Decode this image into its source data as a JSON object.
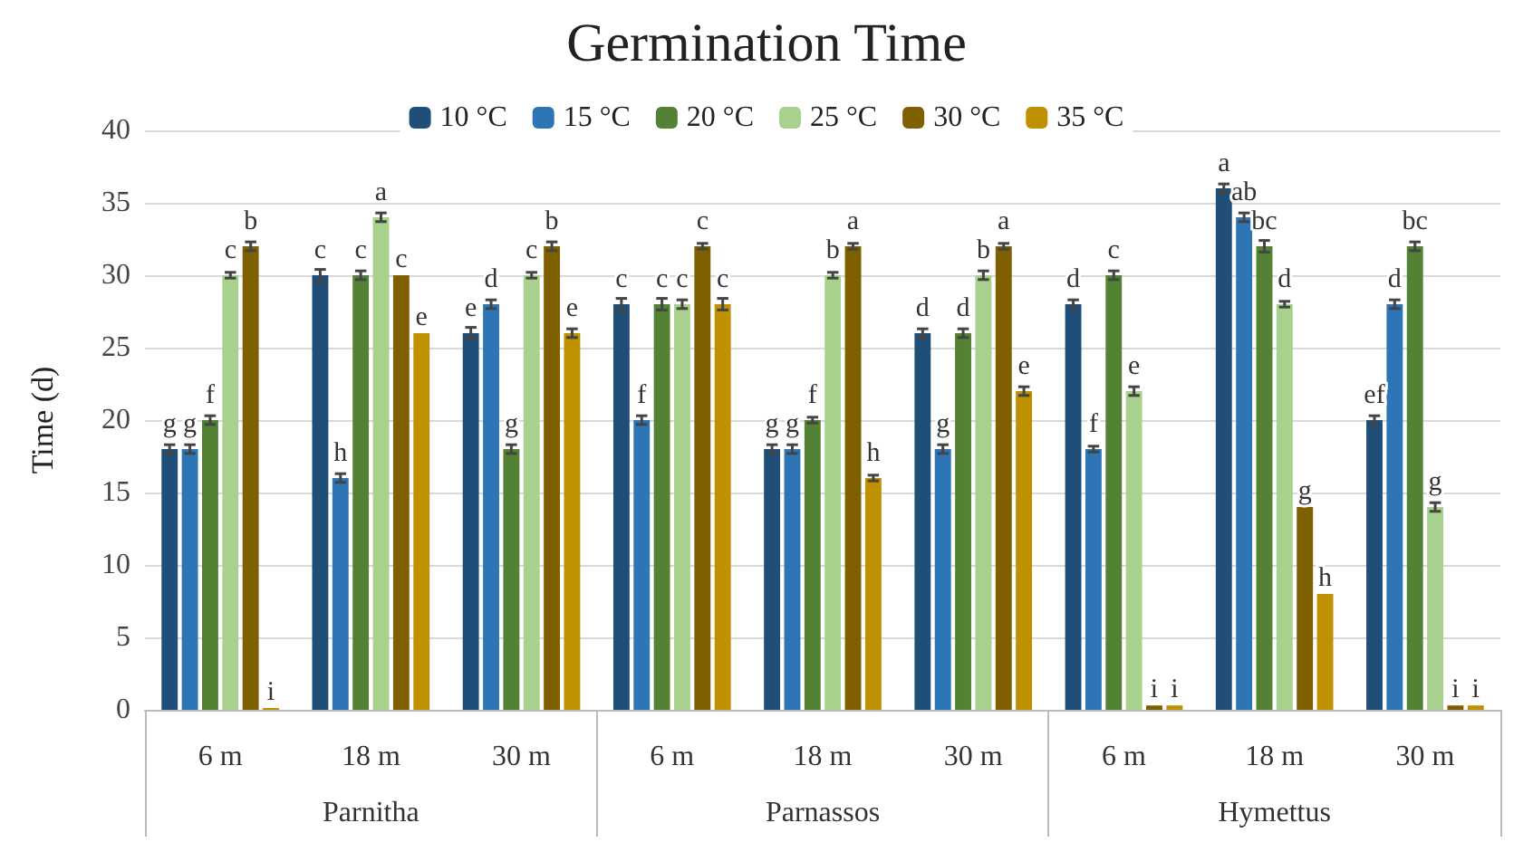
{
  "chart_data": {
    "type": "bar",
    "title": "Germination Time",
    "ylabel": "Time (d)",
    "categories": [
      "6 m",
      "18 m",
      "30 m",
      "6 m",
      "18 m",
      "30 m",
      "6 m",
      "18 m",
      "30 m"
    ],
    "annotations": [
      "Parnitha",
      "Parnassos",
      "Hymettus"
    ],
    "series": [
      {
        "name": "10 °C",
        "color": "#1f4e79",
        "values": [
          18,
          30,
          26,
          28,
          18,
          26,
          28,
          36,
          20
        ],
        "errors": [
          0.3,
          0.4,
          0.4,
          0.4,
          0.3,
          0.3,
          0.3,
          0.3,
          0.3
        ],
        "value_labels": [
          "g",
          "c",
          "e",
          "c",
          "g",
          "d",
          "d",
          "a",
          "ef"
        ]
      },
      {
        "name": "15 °C",
        "color": "#2e75b6",
        "values": [
          18,
          16,
          28,
          20,
          18,
          18,
          18,
          34,
          28
        ],
        "errors": [
          0.3,
          0.3,
          0.3,
          0.3,
          0.3,
          0.3,
          0.2,
          0.3,
          0.3
        ],
        "value_labels": [
          "g",
          "h",
          "d",
          "f",
          "g",
          "g",
          "f",
          "ab",
          "d"
        ]
      },
      {
        "name": "20 °C",
        "color": "#548235",
        "values": [
          20,
          30,
          18,
          28,
          20,
          26,
          30,
          32,
          32
        ],
        "errors": [
          0.3,
          0.3,
          0.3,
          0.4,
          0.2,
          0.3,
          0.3,
          0.4,
          0.3
        ],
        "value_labels": [
          "f",
          "c",
          "g",
          "c",
          "f",
          "d",
          "c",
          "bc",
          "bc"
        ]
      },
      {
        "name": "25 °C",
        "color": "#a9d18e",
        "values": [
          30,
          34,
          30,
          28,
          30,
          30,
          22,
          28,
          14
        ],
        "errors": [
          0.2,
          0.3,
          0.2,
          0.3,
          0.2,
          0.3,
          0.3,
          0.2,
          0.3
        ],
        "value_labels": [
          "c",
          "a",
          "c",
          "c",
          "b",
          "b",
          "e",
          "d",
          "g"
        ]
      },
      {
        "name": "30 °C",
        "color": "#7f6000",
        "values": [
          32,
          30,
          32,
          32,
          32,
          32,
          0.3,
          14,
          0.3
        ],
        "errors": [
          0.3,
          null,
          0.3,
          0.2,
          0.2,
          0.2,
          null,
          null,
          null
        ],
        "value_labels": [
          "b",
          "c",
          "b",
          "c",
          "a",
          "a",
          "i",
          "g",
          "i"
        ]
      },
      {
        "name": "35 °C",
        "color": "#bf9000",
        "values": [
          0,
          26,
          26,
          28,
          16,
          22,
          0.3,
          8,
          0.3
        ],
        "errors": [
          null,
          null,
          0.3,
          0.4,
          0.2,
          0.3,
          null,
          null,
          null
        ],
        "value_labels": [
          "i",
          "e",
          "e",
          "c",
          "h",
          "e",
          "i",
          "h",
          "i"
        ]
      }
    ],
    "ylim": [
      0,
      40
    ],
    "yticks": [
      0,
      5,
      10,
      15,
      20,
      25,
      30,
      35,
      40
    ],
    "grid": "y",
    "legend": "top"
  }
}
